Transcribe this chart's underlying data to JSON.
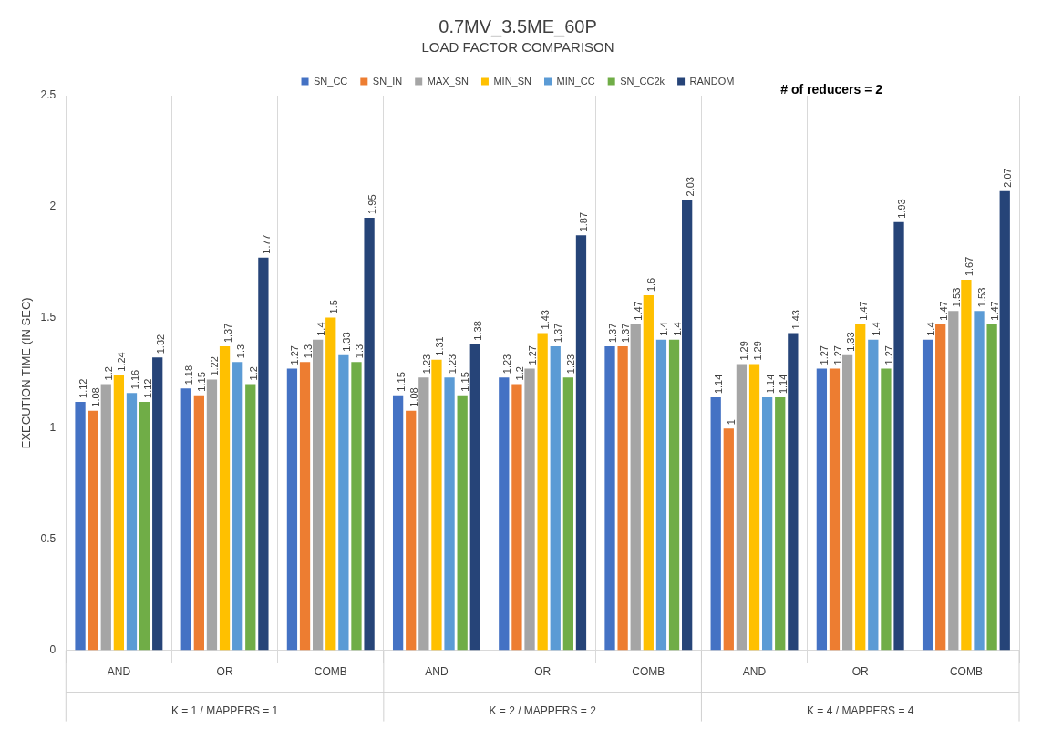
{
  "chart_data": {
    "type": "bar",
    "title": "0.7MV_3.5ME_60P",
    "subtitle": "LOAD FACTOR COMPARISON",
    "ylabel": "EXECUTION TIME (IN SEC)",
    "categories": [
      "AND",
      "OR",
      "COMB",
      "AND",
      "OR",
      "COMB",
      "AND",
      "OR",
      "COMB"
    ],
    "series": [
      {
        "name": "SN_CC",
        "color": "#4472c4",
        "values": [
          1.12,
          1.18,
          1.27,
          1.15,
          1.23,
          1.37,
          1.14,
          1.27,
          1.4
        ]
      },
      {
        "name": "SN_IN",
        "color": "#ed7d31",
        "values": [
          1.08,
          1.15,
          1.3,
          1.08,
          1.2,
          1.37,
          1,
          1.27,
          1.47
        ]
      },
      {
        "name": "MAX_SN",
        "color": "#a5a5a5",
        "values": [
          1.2,
          1.22,
          1.4,
          1.23,
          1.27,
          1.47,
          1.29,
          1.33,
          1.53
        ]
      },
      {
        "name": "MIN_SN",
        "color": "#ffc000",
        "values": [
          1.24,
          1.37,
          1.5,
          1.31,
          1.43,
          1.6,
          1.29,
          1.47,
          1.67
        ]
      },
      {
        "name": "MIN_CC",
        "color": "#5b9bd5",
        "values": [
          1.16,
          1.3,
          1.33,
          1.23,
          1.37,
          1.4,
          1.14,
          1.4,
          1.53
        ]
      },
      {
        "name": "SN_CC2k",
        "color": "#70ad47",
        "values": [
          1.12,
          1.2,
          1.3,
          1.15,
          1.23,
          1.4,
          1.14,
          1.27,
          1.47
        ]
      },
      {
        "name": "RANDOM",
        "color": "#264478",
        "values": [
          1.32,
          1.77,
          1.95,
          1.38,
          1.87,
          2.03,
          1.43,
          1.93,
          2.07
        ]
      }
    ],
    "ylim": [
      0,
      2.5
    ],
    "yticks": [
      0,
      0.5,
      1,
      1.5,
      2,
      2.5
    ],
    "grid": "x",
    "legend": "top",
    "data_labels": true,
    "annotations": [
      "# of reducers = 2",
      "K = 1 / MAPPERS = 1",
      "K = 2 / MAPPERS = 2",
      "K = 4 / MAPPERS = 4"
    ]
  }
}
